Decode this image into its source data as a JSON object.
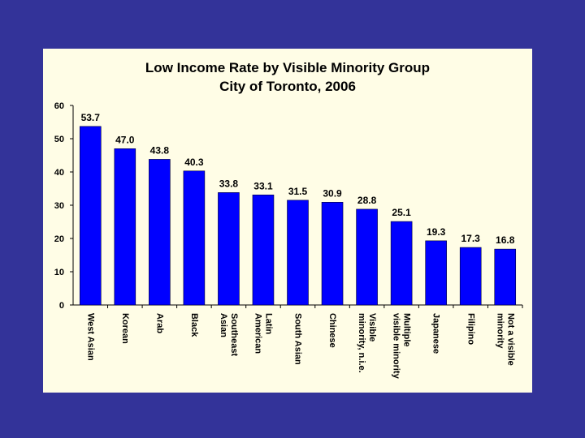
{
  "chart_data": {
    "type": "bar",
    "title": [
      "Low Income Rate by Visible Minority Group",
      "City of Toronto, 2006"
    ],
    "xlabel": "",
    "ylabel": "",
    "ylim": [
      0,
      60
    ],
    "yticks": [
      "0",
      "10",
      "20",
      "30",
      "40",
      "50",
      "60"
    ],
    "grid": false,
    "legend": "none",
    "bar_color": "#0000ff",
    "categories": [
      [
        "West Asian"
      ],
      [
        "Korean"
      ],
      [
        "Arab"
      ],
      [
        "Black"
      ],
      [
        "Southeast",
        "Asian"
      ],
      [
        "Latin",
        "American"
      ],
      [
        "South Asian"
      ],
      [
        "Chinese"
      ],
      [
        "Visible",
        "minority, n.i.e."
      ],
      [
        "Multiple",
        "visible minority"
      ],
      [
        "Japanese"
      ],
      [
        "Filipino"
      ],
      [
        "Not a visible",
        "minority"
      ]
    ],
    "values": [
      53.7,
      47.0,
      43.8,
      40.3,
      33.8,
      33.1,
      31.5,
      30.9,
      28.8,
      25.1,
      19.3,
      17.3,
      16.8
    ],
    "value_labels": [
      "53.7",
      "47.0",
      "43.8",
      "40.3",
      "33.8",
      "33.1",
      "31.5",
      "30.9",
      "28.8",
      "25.1",
      "19.3",
      "17.3",
      "16.8"
    ]
  }
}
